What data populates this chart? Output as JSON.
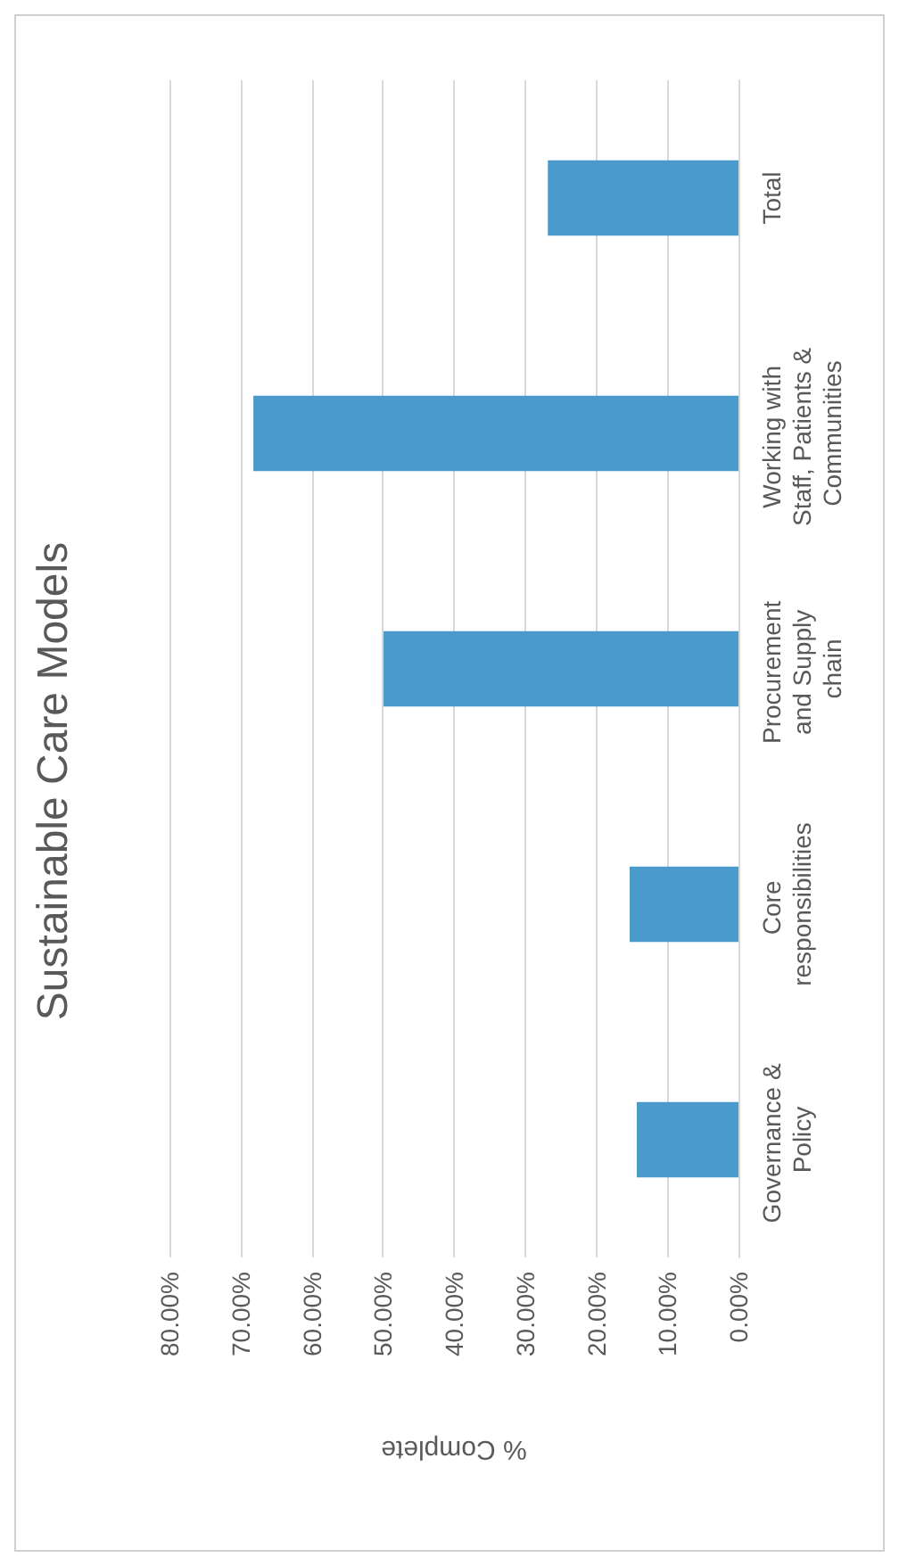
{
  "chart_data": {
    "type": "bar",
    "orientation": "horizontal",
    "title": "Sustainable Care Models",
    "xlabel": "% Complete",
    "categories": [
      "Total",
      "Working with Staff, Patients & Communities",
      "Procurement and Supply chain",
      "Core responsibilities",
      "Governance & Policy"
    ],
    "values": [
      26.8,
      68.2,
      49.9,
      15.3,
      14.3
    ],
    "color": "#4a9bcb",
    "xlim": [
      80,
      0
    ],
    "xticks": [
      {
        "value": 80,
        "label": "80.00%"
      },
      {
        "value": 70,
        "label": "70.00%"
      },
      {
        "value": 60,
        "label": "60.00%"
      },
      {
        "value": 50,
        "label": "50.00%"
      },
      {
        "value": 40,
        "label": "40.00%"
      },
      {
        "value": 30,
        "label": "30.00%"
      },
      {
        "value": 20,
        "label": "20.00%"
      },
      {
        "value": 10,
        "label": "10.00%"
      },
      {
        "value": 0,
        "label": "0.00%"
      }
    ],
    "grid": "x"
  }
}
